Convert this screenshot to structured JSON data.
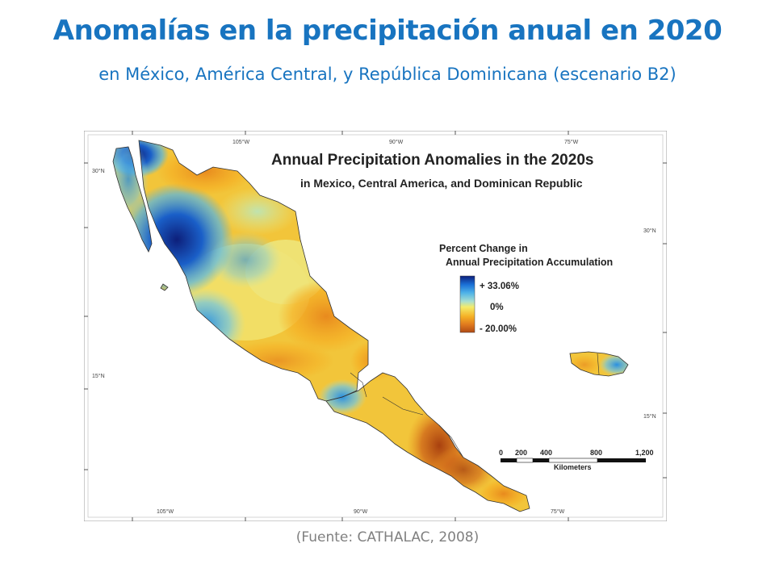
{
  "slide": {
    "title": "Anomalías en la precipitación anual en 2020",
    "subtitle": "en México, América Central, y República Dominicana (escenario B2)",
    "source": "(Fuente: CATHALAC, 2008)"
  },
  "map": {
    "title": "Annual Precipitation Anomalies in the 2020s",
    "subtitle": "in Mexico, Central America, and Dominican Republic",
    "legend": {
      "title_line1": "Percent Change in",
      "title_line2": "Annual Precipitation Accumulation",
      "max_label": "+ 33.06%",
      "mid_label": "0%",
      "min_label": "- 20.00%",
      "colors": [
        "#0d1f7a",
        "#1a6fd6",
        "#4fb3e8",
        "#a8dfd0",
        "#f4ec6a",
        "#f5b025",
        "#e07a1e",
        "#b04a15"
      ]
    },
    "graticule": {
      "lon_105": "105°W",
      "lon_90": "90°W",
      "lon_75": "75°W",
      "lat_30": "30°N",
      "lat_15": "15°N"
    },
    "scale_bar": {
      "ticks": [
        "0",
        "200",
        "400",
        "800",
        "1,200"
      ],
      "unit": "Kilometers"
    }
  }
}
